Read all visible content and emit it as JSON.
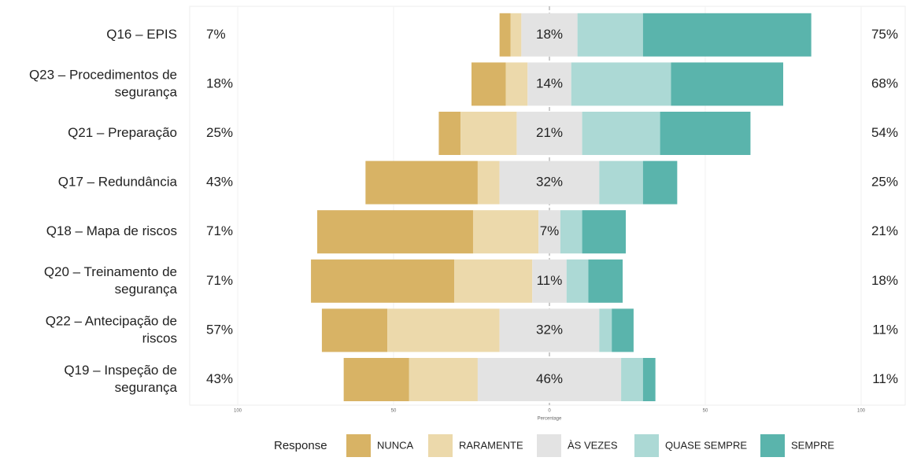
{
  "chart_data": {
    "type": "diverging_stacked_bar",
    "categories": [
      [
        "Q16 – EPIS"
      ],
      [
        "Q23 – Procedimentos de",
        "segurança"
      ],
      [
        "Q21 – Preparação"
      ],
      [
        "Q17 – Redundância"
      ],
      [
        "Q18 – Mapa de riscos"
      ],
      [
        "Q20 – Treinamento de",
        "segurança"
      ],
      [
        "Q22 – Antecipação de",
        "riscos"
      ],
      [
        "Q19 – Inspeção de",
        "segurança"
      ]
    ],
    "series": [
      {
        "name": "NUNCA",
        "color": "#d8b365",
        "values": [
          3.5,
          11,
          7,
          36,
          50,
          46,
          21,
          21
        ]
      },
      {
        "name": "RARAMENTE",
        "color": "#ecd9ab",
        "values": [
          3.5,
          7,
          18,
          7,
          21,
          25,
          36,
          22
        ]
      },
      {
        "name": "ÀS VEZES",
        "color": "#e3e3e3",
        "values": [
          18,
          14,
          21,
          32,
          7,
          11,
          32,
          46
        ]
      },
      {
        "name": "QUASE SEMPRE",
        "color": "#acd9d5",
        "values": [
          21,
          32,
          25,
          14,
          7,
          7,
          4,
          7
        ]
      },
      {
        "name": "SEMPRE",
        "color": "#5ab4ac",
        "values": [
          54,
          36,
          29,
          11,
          14,
          11,
          7,
          4
        ]
      }
    ],
    "low_labels": [
      "7%",
      "18%",
      "25%",
      "43%",
      "71%",
      "71%",
      "57%",
      "43%"
    ],
    "neutral_labels": [
      "18%",
      "14%",
      "21%",
      "32%",
      "7%",
      "11%",
      "32%",
      "46%"
    ],
    "high_labels": [
      "75%",
      "68%",
      "54%",
      "25%",
      "21%",
      "18%",
      "11%",
      "11%"
    ],
    "xlabel": "Percentage",
    "xlim": [
      -115,
      115
    ],
    "xticks": [
      {
        "value": -100,
        "label": "100"
      },
      {
        "value": -50,
        "label": "50"
      },
      0,
      50,
      {
        "value": 100,
        "label": "100"
      }
    ],
    "legend_title": "Response",
    "legend": "bottom"
  }
}
